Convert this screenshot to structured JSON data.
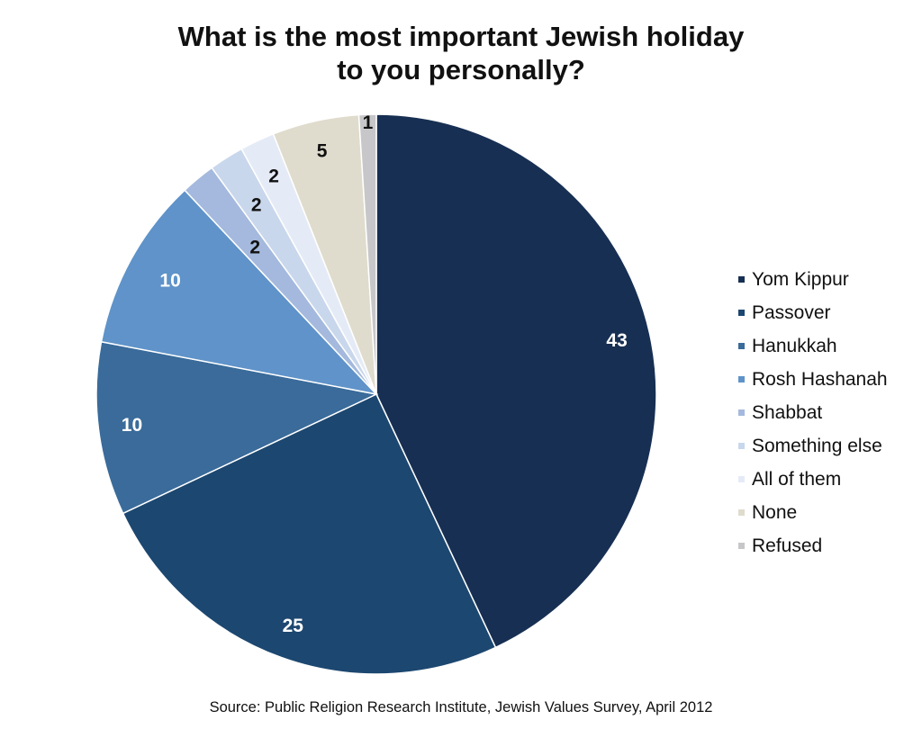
{
  "title": {
    "line1": "What is the most important Jewish holiday",
    "line2": "to you personally?"
  },
  "chart_data": {
    "type": "pie",
    "start": "12 o'clock",
    "direction": "clockwise",
    "categories": [
      "Yom Kippur",
      "Passover",
      "Hanukkah",
      "Rosh Hashanah",
      "Shabbat",
      "Something else",
      "All of them",
      "None",
      "Refused"
    ],
    "values": [
      43,
      25,
      10,
      10,
      2,
      2,
      2,
      5,
      1
    ],
    "colors": [
      "#172f52",
      "#1c4770",
      "#3a6b9a",
      "#5f93c9",
      "#a4b9dd",
      "#c9d7ec",
      "#e5ebf6",
      "#dfdccd",
      "#c7c7c9"
    ],
    "label_colors": [
      "#ffffff",
      "#ffffff",
      "#ffffff",
      "#ffffff",
      "#111111",
      "#111111",
      "#111111",
      "#111111",
      "#111111"
    ],
    "legend_placement": "right"
  },
  "source": "Source: Public Religion Research Institute, Jewish Values Survey, April 2012"
}
